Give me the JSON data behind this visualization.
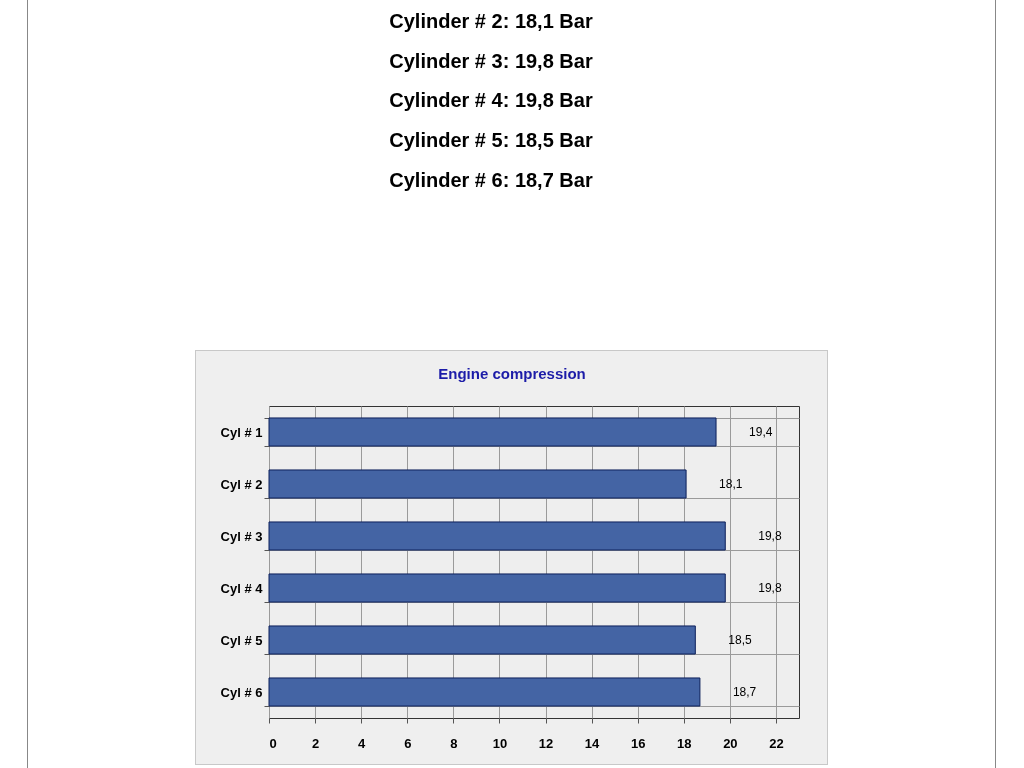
{
  "chart_data": {
    "type": "bar",
    "orientation": "horizontal",
    "title": "Engine compression",
    "annotations": [
      "Cylinder # 2: 18,1 Bar",
      "Cylinder # 3: 19,8 Bar",
      "Cylinder # 4: 19,8 Bar",
      "Cylinder # 5: 18,5 Bar",
      "Cylinder # 6: 18,7 Bar"
    ],
    "categories": [
      "Cyl # 1",
      "Cyl # 2",
      "Cyl # 3",
      "Cyl # 4",
      "Cyl # 5",
      "Cyl # 6"
    ],
    "values": [
      19.4,
      18.1,
      19.8,
      19.8,
      18.5,
      18.7
    ],
    "value_labels": [
      "19,4",
      "18,1",
      "19,8",
      "19,8",
      "18,5",
      "18,7"
    ],
    "color": "#4464a4",
    "xlim": [
      0,
      23
    ],
    "xticks": [
      0,
      2,
      4,
      6,
      8,
      10,
      12,
      14,
      16,
      18,
      20,
      22
    ],
    "grid": true
  }
}
